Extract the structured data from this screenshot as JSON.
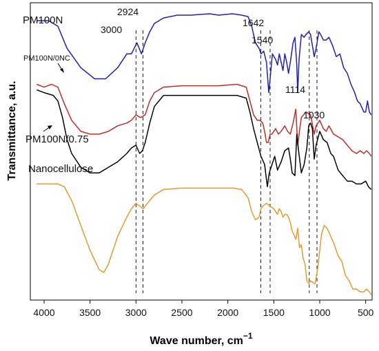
{
  "chart_data": {
    "type": "line",
    "title": "",
    "xlabel": "Wave number, cm",
    "xlabel_sup": "−1",
    "ylabel": "Transmittance, a.u.",
    "xlim": [
      4150,
      430
    ],
    "x_reversed": true,
    "y_ticks_shown": false,
    "grid": false,
    "legend": "none",
    "x_ticks": [
      4000,
      3500,
      3000,
      2500,
      2000,
      1500,
      1000,
      500
    ],
    "x_tick_labels": [
      "4000",
      "3500",
      "3000",
      "2500",
      "2000",
      "1500",
      "1000",
      "500"
    ],
    "reference_lines": [
      {
        "x": 3000,
        "label": "3000"
      },
      {
        "x": 2924,
        "label": "2924"
      },
      {
        "x": 1642,
        "label": "1642"
      },
      {
        "x": 1540,
        "label": "1540"
      },
      {
        "x": 1114,
        "label": "1114"
      },
      {
        "x": 1030,
        "label": "1030"
      }
    ],
    "series": [
      {
        "name": "PM100N",
        "color": "#1f1fb4",
        "points": [
          [
            4080,
            0.04
          ],
          [
            3950,
            0.04
          ],
          [
            3850,
            0.06
          ],
          [
            3750,
            0.14
          ],
          [
            3600,
            0.21
          ],
          [
            3450,
            0.25
          ],
          [
            3330,
            0.25
          ],
          [
            3200,
            0.21
          ],
          [
            3100,
            0.16
          ],
          [
            3050,
            0.16
          ],
          [
            2990,
            0.12
          ],
          [
            2940,
            0.16
          ],
          [
            2900,
            0.12
          ],
          [
            2850,
            0.08
          ],
          [
            2800,
            0.05
          ],
          [
            2700,
            0.03
          ],
          [
            2550,
            0.02
          ],
          [
            2400,
            0.02
          ],
          [
            2200,
            0.015
          ],
          [
            2100,
            0.02
          ],
          [
            1950,
            0.015
          ],
          [
            1850,
            0.02
          ],
          [
            1780,
            0.025
          ],
          [
            1740,
            0.06
          ],
          [
            1700,
            0.12
          ],
          [
            1660,
            0.14
          ],
          [
            1640,
            0.16
          ],
          [
            1610,
            0.15
          ],
          [
            1580,
            0.19
          ],
          [
            1555,
            0.3
          ],
          [
            1540,
            0.25
          ],
          [
            1515,
            0.16
          ],
          [
            1480,
            0.18
          ],
          [
            1460,
            0.2
          ],
          [
            1440,
            0.16
          ],
          [
            1420,
            0.19
          ],
          [
            1400,
            0.22
          ],
          [
            1380,
            0.16
          ],
          [
            1360,
            0.19
          ],
          [
            1340,
            0.23
          ],
          [
            1320,
            0.19
          ],
          [
            1290,
            0.12
          ],
          [
            1270,
            0.1
          ],
          [
            1250,
            0.2
          ],
          [
            1240,
            0.3
          ],
          [
            1225,
            0.18
          ],
          [
            1200,
            0.09
          ],
          [
            1170,
            0.1
          ],
          [
            1150,
            0.09
          ],
          [
            1120,
            0.08
          ],
          [
            1100,
            0.09
          ],
          [
            1060,
            0.17
          ],
          [
            1040,
            0.14
          ],
          [
            1010,
            0.08
          ],
          [
            990,
            0.09
          ],
          [
            960,
            0.11
          ],
          [
            930,
            0.11
          ],
          [
            900,
            0.1
          ],
          [
            860,
            0.13
          ],
          [
            820,
            0.17
          ],
          [
            780,
            0.16
          ],
          [
            740,
            0.21
          ],
          [
            700,
            0.23
          ],
          [
            660,
            0.27
          ],
          [
            620,
            0.3
          ],
          [
            590,
            0.33
          ],
          [
            560,
            0.34
          ],
          [
            520,
            0.37
          ],
          [
            500,
            0.37
          ],
          [
            480,
            0.33
          ],
          [
            460,
            0.37
          ],
          [
            440,
            0.38
          ]
        ]
      },
      {
        "name": "PM100N/0NC",
        "color": "#c42a2a",
        "points": [
          [
            4080,
            0.27
          ],
          [
            4000,
            0.28
          ],
          [
            3920,
            0.27
          ],
          [
            3850,
            0.28
          ],
          [
            3780,
            0.34
          ],
          [
            3700,
            0.4
          ],
          [
            3600,
            0.44
          ],
          [
            3500,
            0.45
          ],
          [
            3400,
            0.45
          ],
          [
            3300,
            0.44
          ],
          [
            3200,
            0.42
          ],
          [
            3100,
            0.41
          ],
          [
            3050,
            0.4
          ],
          [
            3000,
            0.38
          ],
          [
            2950,
            0.39
          ],
          [
            2900,
            0.38
          ],
          [
            2850,
            0.33
          ],
          [
            2800,
            0.3
          ],
          [
            2700,
            0.28
          ],
          [
            2500,
            0.275
          ],
          [
            2300,
            0.275
          ],
          [
            2100,
            0.275
          ],
          [
            1900,
            0.27
          ],
          [
            1800,
            0.28
          ],
          [
            1760,
            0.33
          ],
          [
            1720,
            0.38
          ],
          [
            1680,
            0.4
          ],
          [
            1650,
            0.4
          ],
          [
            1620,
            0.41
          ],
          [
            1600,
            0.44
          ],
          [
            1580,
            0.48
          ],
          [
            1560,
            0.48
          ],
          [
            1540,
            0.45
          ],
          [
            1520,
            0.45
          ],
          [
            1480,
            0.43
          ],
          [
            1450,
            0.45
          ],
          [
            1420,
            0.44
          ],
          [
            1380,
            0.42
          ],
          [
            1350,
            0.44
          ],
          [
            1320,
            0.45
          ],
          [
            1290,
            0.41
          ],
          [
            1260,
            0.36
          ],
          [
            1240,
            0.49
          ],
          [
            1225,
            0.45
          ],
          [
            1200,
            0.39
          ],
          [
            1150,
            0.37
          ],
          [
            1100,
            0.38
          ],
          [
            1060,
            0.45
          ],
          [
            1040,
            0.42
          ],
          [
            1000,
            0.4
          ],
          [
            960,
            0.43
          ],
          [
            930,
            0.44
          ],
          [
            900,
            0.42
          ],
          [
            850,
            0.45
          ],
          [
            800,
            0.46
          ],
          [
            750,
            0.47
          ],
          [
            700,
            0.49
          ],
          [
            650,
            0.51
          ],
          [
            600,
            0.52
          ],
          [
            560,
            0.51
          ],
          [
            520,
            0.52
          ],
          [
            490,
            0.51
          ],
          [
            460,
            0.52
          ],
          [
            440,
            0.53
          ]
        ]
      },
      {
        "name": "PM100N/0.75",
        "color": "#000000",
        "points": [
          [
            4080,
            0.29
          ],
          [
            4000,
            0.3
          ],
          [
            3900,
            0.31
          ],
          [
            3850,
            0.33
          ],
          [
            3800,
            0.39
          ],
          [
            3750,
            0.47
          ],
          [
            3700,
            0.52
          ],
          [
            3600,
            0.57
          ],
          [
            3500,
            0.59
          ],
          [
            3400,
            0.59
          ],
          [
            3300,
            0.57
          ],
          [
            3200,
            0.55
          ],
          [
            3100,
            0.52
          ],
          [
            3050,
            0.5
          ],
          [
            3000,
            0.49
          ],
          [
            2960,
            0.52
          ],
          [
            2930,
            0.51
          ],
          [
            2900,
            0.48
          ],
          [
            2850,
            0.41
          ],
          [
            2800,
            0.35
          ],
          [
            2700,
            0.31
          ],
          [
            2500,
            0.31
          ],
          [
            2300,
            0.31
          ],
          [
            2100,
            0.31
          ],
          [
            1900,
            0.31
          ],
          [
            1800,
            0.32
          ],
          [
            1760,
            0.37
          ],
          [
            1720,
            0.43
          ],
          [
            1680,
            0.48
          ],
          [
            1640,
            0.53
          ],
          [
            1600,
            0.56
          ],
          [
            1570,
            0.64
          ],
          [
            1550,
            0.59
          ],
          [
            1520,
            0.56
          ],
          [
            1490,
            0.53
          ],
          [
            1460,
            0.58
          ],
          [
            1420,
            0.55
          ],
          [
            1380,
            0.51
          ],
          [
            1340,
            0.5
          ],
          [
            1320,
            0.54
          ],
          [
            1300,
            0.59
          ],
          [
            1270,
            0.6
          ],
          [
            1250,
            0.45
          ],
          [
            1230,
            0.51
          ],
          [
            1200,
            0.59
          ],
          [
            1170,
            0.56
          ],
          [
            1140,
            0.5
          ],
          [
            1120,
            0.42
          ],
          [
            1100,
            0.41
          ],
          [
            1080,
            0.43
          ],
          [
            1060,
            0.54
          ],
          [
            1040,
            0.49
          ],
          [
            1000,
            0.44
          ],
          [
            960,
            0.47
          ],
          [
            920,
            0.48
          ],
          [
            880,
            0.52
          ],
          [
            850,
            0.53
          ],
          [
            800,
            0.58
          ],
          [
            750,
            0.6
          ],
          [
            700,
            0.62
          ],
          [
            650,
            0.62
          ],
          [
            600,
            0.63
          ],
          [
            550,
            0.63
          ],
          [
            500,
            0.62
          ],
          [
            470,
            0.64
          ],
          [
            440,
            0.65
          ]
        ]
      },
      {
        "name": "Nanocellulose",
        "color": "#e59a2d",
        "points": [
          [
            4080,
            0.63
          ],
          [
            3950,
            0.63
          ],
          [
            3850,
            0.63
          ],
          [
            3780,
            0.64
          ],
          [
            3700,
            0.69
          ],
          [
            3600,
            0.78
          ],
          [
            3500,
            0.87
          ],
          [
            3400,
            0.94
          ],
          [
            3350,
            0.95
          ],
          [
            3300,
            0.92
          ],
          [
            3200,
            0.82
          ],
          [
            3100,
            0.75
          ],
          [
            3050,
            0.72
          ],
          [
            3000,
            0.7
          ],
          [
            2960,
            0.71
          ],
          [
            2920,
            0.72
          ],
          [
            2900,
            0.71
          ],
          [
            2850,
            0.69
          ],
          [
            2800,
            0.67
          ],
          [
            2700,
            0.65
          ],
          [
            2500,
            0.645
          ],
          [
            2300,
            0.645
          ],
          [
            2100,
            0.645
          ],
          [
            1950,
            0.645
          ],
          [
            1850,
            0.65
          ],
          [
            1780,
            0.68
          ],
          [
            1740,
            0.73
          ],
          [
            1700,
            0.76
          ],
          [
            1660,
            0.75
          ],
          [
            1640,
            0.72
          ],
          [
            1620,
            0.71
          ],
          [
            1580,
            0.7
          ],
          [
            1540,
            0.71
          ],
          [
            1500,
            0.72
          ],
          [
            1460,
            0.74
          ],
          [
            1440,
            0.72
          ],
          [
            1420,
            0.73
          ],
          [
            1400,
            0.75
          ],
          [
            1380,
            0.74
          ],
          [
            1360,
            0.74
          ],
          [
            1340,
            0.75
          ],
          [
            1320,
            0.77
          ],
          [
            1300,
            0.8
          ],
          [
            1260,
            0.83
          ],
          [
            1240,
            0.79
          ],
          [
            1220,
            0.86
          ],
          [
            1200,
            0.85
          ],
          [
            1180,
            0.9
          ],
          [
            1160,
            0.92
          ],
          [
            1140,
            0.98
          ],
          [
            1120,
            0.99
          ],
          [
            1100,
            0.98
          ],
          [
            1060,
            0.99
          ],
          [
            1050,
            0.99
          ],
          [
            1020,
            0.93
          ],
          [
            980,
            0.81
          ],
          [
            950,
            0.78
          ],
          [
            920,
            0.79
          ],
          [
            880,
            0.82
          ],
          [
            840,
            0.85
          ],
          [
            800,
            0.89
          ],
          [
            760,
            0.91
          ],
          [
            720,
            0.96
          ],
          [
            680,
            0.98
          ],
          [
            640,
            1.01
          ],
          [
            600,
            1.01
          ],
          [
            560,
            1.02
          ],
          [
            520,
            1.02
          ],
          [
            490,
            1.01
          ],
          [
            460,
            1.02
          ],
          [
            440,
            1.03
          ]
        ]
      }
    ],
    "series_label_text": [
      "PM100N",
      "PM100N/0NC",
      "PM100N/0.75",
      "Nanocellulose"
    ]
  }
}
